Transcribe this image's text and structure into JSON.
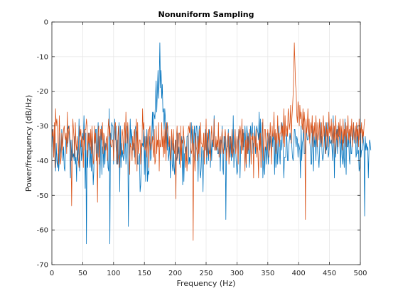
{
  "chart_data": {
    "type": "line",
    "title": "Nonuniform Sampling",
    "xlabel": "Frequency (Hz)",
    "ylabel": "Power/frequency (dB/Hz)",
    "xlim": [
      0,
      500
    ],
    "ylim": [
      -70,
      0
    ],
    "xticks": [
      0,
      50,
      100,
      150,
      200,
      250,
      300,
      350,
      400,
      450,
      500
    ],
    "yticks": [
      0,
      -10,
      -20,
      -30,
      -40,
      -50,
      -60,
      -70
    ],
    "grid": true,
    "x_step": 1,
    "series": [
      {
        "color": "#0072BD",
        "values": [
          -36,
          -31,
          -35,
          -39,
          -31,
          -37,
          -43,
          -35,
          -40,
          -42,
          -38,
          -43,
          -40,
          -32,
          -36,
          -39,
          -31,
          -34,
          -40,
          -36,
          -42,
          -43,
          -37,
          -33,
          -34,
          -36,
          -31,
          -30,
          -32,
          -35,
          -45,
          -34,
          -40,
          -34,
          -39,
          -38,
          -40,
          -33,
          -41,
          -39,
          -46,
          -36,
          -40,
          -38,
          -28,
          -43,
          -37,
          -34,
          -40,
          -37,
          -32,
          -34,
          -27,
          -34,
          -48,
          -32,
          -64,
          -37,
          -42,
          -36,
          -32,
          -40,
          -42,
          -36,
          -43,
          -33,
          -38,
          -47,
          -43,
          -32,
          -35,
          -31,
          -31,
          -41,
          -35,
          -29,
          -39,
          -33,
          -45,
          -36,
          -30,
          -44,
          -36,
          -36,
          -42,
          -33,
          -41,
          -35,
          -35,
          -37,
          -37,
          -42,
          -43,
          -25,
          -64,
          -32,
          -34,
          -29,
          -30,
          -30,
          -41,
          -32,
          -28,
          -34,
          -30,
          -41,
          -34,
          -41,
          -38,
          -29,
          -49,
          -30,
          -42,
          -35,
          -39,
          -37,
          -40,
          -39,
          -38,
          -32,
          -41,
          -38,
          -30,
          -33,
          -59,
          -41,
          -36,
          -28,
          -36,
          -31,
          -34,
          -37,
          -36,
          -35,
          -39,
          -31,
          -30,
          -31,
          -32,
          -41,
          -41,
          -39,
          -38,
          -49,
          -47,
          -40,
          -36,
          -35,
          -36,
          -30,
          -44,
          -33,
          -46,
          -39,
          -31,
          -46,
          -43,
          -44,
          -36,
          -33,
          -40,
          -39,
          -32,
          -26,
          -34,
          -26,
          -27,
          -28,
          -22,
          -17,
          -26,
          -20,
          -14,
          -22,
          -17,
          -6,
          -19,
          -14,
          -22,
          -18,
          -26,
          -25,
          -31,
          -25,
          -28,
          -35,
          -29,
          -37,
          -30,
          -40,
          -38,
          -34,
          -45,
          -38,
          -33,
          -41,
          -43,
          -35,
          -42,
          -44,
          -37,
          -34,
          -40,
          -39,
          -32,
          -38,
          -36,
          -41,
          -39,
          -37,
          -33,
          -36,
          -47,
          -33,
          -46,
          -38,
          -38,
          -36,
          -40,
          -33,
          -33,
          -32,
          -41,
          -39,
          -41,
          -35,
          -29,
          -35,
          -34,
          -31,
          -39,
          -30,
          -33,
          -40,
          -30,
          -30,
          -34,
          -46,
          -33,
          -30,
          -43,
          -45,
          -42,
          -36,
          -38,
          -49,
          -37,
          -38,
          -36,
          -31,
          -34,
          -41,
          -32,
          -36,
          -40,
          -31,
          -32,
          -42,
          -34,
          -40,
          -34,
          -36,
          -34,
          -27,
          -36,
          -37,
          -35,
          -37,
          -36,
          -38,
          -38,
          -35,
          -34,
          -43,
          -34,
          -35,
          -30,
          -42,
          -44,
          -33,
          -37,
          -33,
          -57,
          -37,
          -36,
          -36,
          -31,
          -40,
          -33,
          -39,
          -33,
          -40,
          -34,
          -39,
          -27,
          -42,
          -36,
          -31,
          -37,
          -41,
          -44,
          -43,
          -34,
          -31,
          -32,
          -45,
          -36,
          -35,
          -34,
          -31,
          -37,
          -32,
          -36,
          -30,
          -34,
          -42,
          -30,
          -32,
          -38,
          -32,
          -42,
          -39,
          -30,
          -33,
          -31,
          -29,
          -38,
          -35,
          -35,
          -30,
          -38,
          -33,
          -30,
          -31,
          -32,
          -34,
          -26,
          -36,
          -28,
          -42,
          -33,
          -29,
          -45,
          -41,
          -36,
          -44,
          -36,
          -37,
          -41,
          -32,
          -38,
          -41,
          -32,
          -37,
          -33,
          -36,
          -38,
          -32,
          -36,
          -32,
          -35,
          -44,
          -32,
          -42,
          -40,
          -34,
          -41,
          -36,
          -30,
          -38,
          -41,
          -34,
          -37,
          -29,
          -31,
          -38,
          -45,
          -39,
          -39,
          -39,
          -32,
          -34,
          -40,
          -40,
          -36,
          -34,
          -32,
          -34,
          -32,
          -36,
          -39,
          -40,
          -38,
          -31,
          -31,
          -34,
          -36,
          -33,
          -34,
          -39,
          -35,
          -36,
          -37,
          -45,
          -30,
          -40,
          -35,
          -34,
          -28,
          -38,
          -38,
          -38,
          -31,
          -32,
          -34,
          -34,
          -32,
          -31,
          -34,
          -37,
          -41,
          -41,
          -30,
          -37,
          -43,
          -32,
          -36,
          -33,
          -40,
          -32,
          -33,
          -38,
          -39,
          -42,
          -37,
          -29,
          -36,
          -33,
          -38,
          -40,
          -39,
          -36,
          -31,
          -38,
          -29,
          -37,
          -36,
          -29,
          -39,
          -38,
          -33,
          -35,
          -35,
          -34,
          -36,
          -40,
          -27,
          -34,
          -45,
          -32,
          -39,
          -35,
          -31,
          -38,
          -30,
          -33,
          -33,
          -37,
          -42,
          -31,
          -38,
          -41,
          -34,
          -39,
          -42,
          -28,
          -37,
          -44,
          -30,
          -36,
          -36,
          -33,
          -39,
          -41,
          -31,
          -38,
          -38,
          -34,
          -34,
          -29,
          -35,
          -32,
          -31,
          -39,
          -38,
          -30,
          -38,
          -37,
          -43,
          -42,
          -28,
          -39,
          -37,
          -37,
          -32,
          -34,
          -36,
          -56,
          -33,
          -37,
          -35,
          -37,
          -36,
          -45,
          -37,
          -34,
          -35,
          -37
        ]
      },
      {
        "color": "#D95319",
        "values": [
          -31,
          -33,
          -31,
          -39,
          -29,
          -42,
          -25,
          -30,
          -28,
          -30,
          -35,
          -41,
          -27,
          -33,
          -41,
          -39,
          -32,
          -37,
          -34,
          -31,
          -30,
          -33,
          -34,
          -32,
          -38,
          -26,
          -35,
          -32,
          -30,
          -33,
          -35,
          -38,
          -53,
          -39,
          -28,
          -31,
          -34,
          -39,
          -29,
          -35,
          -37,
          -33,
          -36,
          -40,
          -42,
          -30,
          -33,
          -31,
          -36,
          -33,
          -36,
          -42,
          -31,
          -37,
          -31,
          -31,
          -28,
          -30,
          -39,
          -32,
          -35,
          -32,
          -37,
          -31,
          -38,
          -30,
          -34,
          -41,
          -40,
          -30,
          -35,
          -32,
          -40,
          -38,
          -52,
          -32,
          -30,
          -41,
          -35,
          -31,
          -31,
          -34,
          -29,
          -38,
          -32,
          -33,
          -36,
          -37,
          -34,
          -33,
          -40,
          -31,
          -28,
          -33,
          -30,
          -35,
          -36,
          -36,
          -34,
          -34,
          -40,
          -34,
          -30,
          -29,
          -36,
          -38,
          -41,
          -33,
          -30,
          -42,
          -39,
          -38,
          -36,
          -33,
          -31,
          -33,
          -38,
          -32,
          -29,
          -35,
          -26,
          -33,
          -35,
          -29,
          -33,
          -37,
          -44,
          -35,
          -36,
          -36,
          -40,
          -33,
          -37,
          -32,
          -31,
          -41,
          -34,
          -28,
          -43,
          -29,
          -38,
          -36,
          -34,
          -34,
          -41,
          -35,
          -36,
          -25,
          -31,
          -29,
          -34,
          -37,
          -36,
          -33,
          -39,
          -35,
          -31,
          -42,
          -31,
          -30,
          -37,
          -35,
          -35,
          -33,
          -37,
          -39,
          -31,
          -41,
          -40,
          -30,
          -38,
          -34,
          -36,
          -29,
          -43,
          -34,
          -36,
          -36,
          -29,
          -36,
          -33,
          -39,
          -31,
          -38,
          -29,
          -40,
          -33,
          -29,
          -32,
          -34,
          -36,
          -33,
          -39,
          -40,
          -31,
          -34,
          -37,
          -31,
          -37,
          -38,
          -34,
          -51,
          -33,
          -30,
          -40,
          -35,
          -32,
          -32,
          -42,
          -30,
          -40,
          -34,
          -35,
          -30,
          -33,
          -35,
          -37,
          -42,
          -36,
          -43,
          -38,
          -31,
          -30,
          -32,
          -29,
          -36,
          -38,
          -37,
          -30,
          -63,
          -35,
          -39,
          -43,
          -32,
          -36,
          -37,
          -40,
          -33,
          -38,
          -31,
          -39,
          -29,
          -35,
          -35,
          -36,
          -36,
          -32,
          -41,
          -32,
          -37,
          -28,
          -39,
          -38,
          -35,
          -31,
          -38,
          -37,
          -40,
          -34,
          -30,
          -34,
          -34,
          -36,
          -28,
          -37,
          -37,
          -33,
          -37,
          -34,
          -36,
          -29,
          -39,
          -34,
          -33,
          -38,
          -34,
          -31,
          -36,
          -38,
          -35,
          -33,
          -31,
          -34,
          -40,
          -37,
          -33,
          -32,
          -41,
          -37,
          -33,
          -34,
          -38,
          -31,
          -39,
          -37,
          -36,
          -34,
          -31,
          -38,
          -36,
          -33,
          -35,
          -41,
          -31,
          -34,
          -30,
          -32,
          -38,
          -28,
          -37,
          -31,
          -36,
          -36,
          -43,
          -34,
          -41,
          -32,
          -38,
          -33,
          -37,
          -35,
          -31,
          -34,
          -41,
          -33,
          -34,
          -32,
          -45,
          -33,
          -33,
          -36,
          -31,
          -39,
          -35,
          -38,
          -45,
          -32,
          -37,
          -32,
          -42,
          -36,
          -33,
          -28,
          -40,
          -35,
          -31,
          -31,
          -36,
          -37,
          -34,
          -31,
          -35,
          -39,
          -34,
          -29,
          -35,
          -41,
          -30,
          -33,
          -33,
          -26,
          -34,
          -31,
          -38,
          -32,
          -35,
          -27,
          -34,
          -32,
          -36,
          -32,
          -32,
          -29,
          -33,
          -30,
          -35,
          -25,
          -36,
          -27,
          -33,
          -32,
          -30,
          -33,
          -25,
          -27,
          -31,
          -29,
          -24,
          -35,
          -28,
          -25,
          -21,
          -15,
          -6,
          -12,
          -18,
          -20,
          -27,
          -29,
          -23,
          -25,
          -30,
          -24,
          -28,
          -26,
          -29,
          -31,
          -25,
          -32,
          -26,
          -29,
          -57,
          -28,
          -32,
          -30,
          -25,
          -33,
          -28,
          -35,
          -31,
          -29,
          -32,
          -27,
          -36,
          -30,
          -33,
          -29,
          -34,
          -27,
          -31,
          -36,
          -29,
          -31,
          -34,
          -28,
          -32,
          -35,
          -29,
          -36,
          -31,
          -27,
          -33,
          -30,
          -34,
          -38,
          -29,
          -33,
          -31,
          -36,
          -26,
          -32,
          -30,
          -33,
          -28,
          -35,
          -31,
          -29,
          -35,
          -30,
          -38,
          -27,
          -32,
          -34,
          -31,
          -36,
          -29,
          -33,
          -28,
          -35,
          -30,
          -32,
          -37,
          -28,
          -35,
          -31,
          -33,
          -29,
          -36,
          -30,
          -32,
          -27,
          -34,
          -31,
          -35,
          -30,
          -33,
          -28,
          -36,
          -31,
          -29,
          -34,
          -32,
          -30,
          -35,
          -29,
          -33,
          -31,
          -36,
          -28,
          -34,
          -30,
          -32,
          -29,
          -35,
          -31,
          -33,
          -30,
          -28
        ]
      }
    ]
  }
}
